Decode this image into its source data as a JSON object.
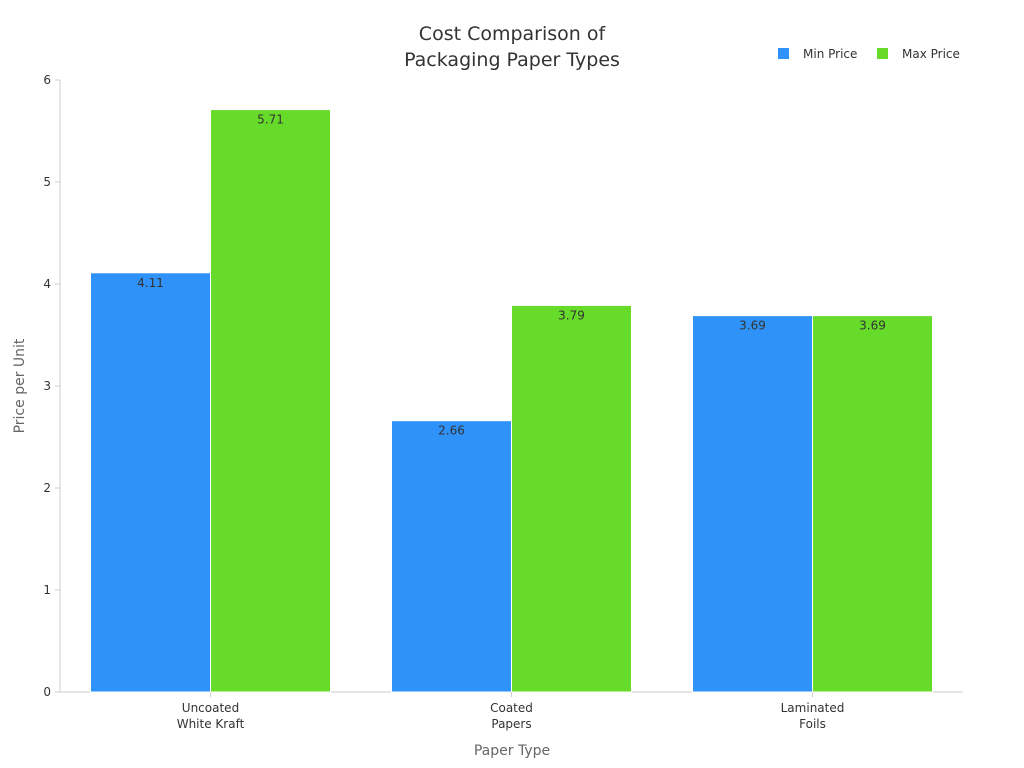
{
  "chart_data": {
    "type": "bar",
    "title_lines": [
      "Cost Comparison of",
      "Packaging Paper Types"
    ],
    "xlabel": "Paper Type",
    "ylabel": "Price per Unit",
    "categories": [
      [
        "Uncoated",
        "White Kraft"
      ],
      [
        "Coated",
        "Papers"
      ],
      [
        "Laminated",
        "Foils"
      ]
    ],
    "series": [
      {
        "name": "Min Price",
        "color": "#2f92f8",
        "values": [
          4.11,
          2.66,
          3.69
        ]
      },
      {
        "name": "Max Price",
        "color": "#66db29",
        "values": [
          5.71,
          3.79,
          3.69
        ]
      }
    ],
    "ylim": [
      0,
      6
    ],
    "yticks": [
      0,
      1,
      2,
      3,
      4,
      5,
      6
    ],
    "grid": false,
    "legend_position": "top-right"
  }
}
